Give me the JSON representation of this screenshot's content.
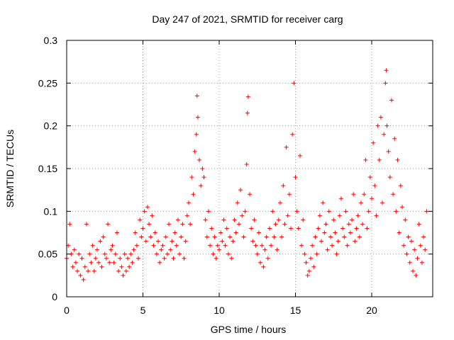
{
  "chart_data": {
    "type": "scatter",
    "title": "Day 247 of 2021, SRMTID for receiver carg",
    "xlabel": "GPS time / hours",
    "ylabel": "SRMTID / TECUs",
    "xlim": [
      0,
      24
    ],
    "ylim": [
      0,
      0.3
    ],
    "xticks": [
      0,
      5,
      10,
      15,
      20
    ],
    "yticks": [
      0,
      0.05,
      0.1,
      0.15,
      0.2,
      0.25,
      0.3
    ],
    "xtick_labels": [
      "0",
      "5",
      "10",
      "15",
      "20"
    ],
    "ytick_labels": [
      "0",
      "0.05",
      "0.1",
      "0.15",
      "0.2",
      "0.25",
      "0.3"
    ],
    "grid": true,
    "marker": "+",
    "color": "#ff0000",
    "series": [
      {
        "name": "SRMTID",
        "points": [
          [
            0.0,
            0.045
          ],
          [
            0.1,
            0.06
          ],
          [
            0.2,
            0.085
          ],
          [
            0.3,
            0.05
          ],
          [
            0.4,
            0.035
          ],
          [
            0.5,
            0.055
          ],
          [
            0.6,
            0.04
          ],
          [
            0.7,
            0.03
          ],
          [
            0.8,
            0.05
          ],
          [
            0.9,
            0.025
          ],
          [
            1.0,
            0.045
          ],
          [
            1.1,
            0.02
          ],
          [
            1.2,
            0.035
          ],
          [
            1.3,
            0.085
          ],
          [
            1.4,
            0.03
          ],
          [
            1.5,
            0.05
          ],
          [
            1.6,
            0.04
          ],
          [
            1.7,
            0.06
          ],
          [
            1.8,
            0.03
          ],
          [
            1.9,
            0.045
          ],
          [
            2.0,
            0.055
          ],
          [
            2.1,
            0.04
          ],
          [
            2.2,
            0.065
          ],
          [
            2.3,
            0.035
          ],
          [
            2.4,
            0.07
          ],
          [
            2.5,
            0.05
          ],
          [
            2.6,
            0.045
          ],
          [
            2.7,
            0.085
          ],
          [
            2.8,
            0.04
          ],
          [
            2.9,
            0.055
          ],
          [
            3.0,
            0.06
          ],
          [
            3.1,
            0.04
          ],
          [
            3.2,
            0.05
          ],
          [
            3.3,
            0.075
          ],
          [
            3.4,
            0.03
          ],
          [
            3.5,
            0.045
          ],
          [
            3.6,
            0.035
          ],
          [
            3.7,
            0.025
          ],
          [
            3.8,
            0.05
          ],
          [
            3.9,
            0.03
          ],
          [
            4.0,
            0.045
          ],
          [
            4.1,
            0.035
          ],
          [
            4.2,
            0.05
          ],
          [
            4.3,
            0.04
          ],
          [
            4.4,
            0.055
          ],
          [
            4.5,
            0.075
          ],
          [
            4.6,
            0.06
          ],
          [
            4.7,
            0.045
          ],
          [
            4.8,
            0.09
          ],
          [
            4.9,
            0.07
          ],
          [
            5.0,
            0.08
          ],
          [
            5.1,
            0.1
          ],
          [
            5.2,
            0.065
          ],
          [
            5.3,
            0.105
          ],
          [
            5.4,
            0.085
          ],
          [
            5.5,
            0.07
          ],
          [
            5.6,
            0.095
          ],
          [
            5.7,
            0.06
          ],
          [
            5.8,
            0.075
          ],
          [
            5.9,
            0.05
          ],
          [
            6.0,
            0.065
          ],
          [
            6.1,
            0.04
          ],
          [
            6.2,
            0.055
          ],
          [
            6.3,
            0.06
          ],
          [
            6.4,
            0.045
          ],
          [
            6.5,
            0.07
          ],
          [
            6.6,
            0.05
          ],
          [
            6.7,
            0.085
          ],
          [
            6.8,
            0.055
          ],
          [
            6.9,
            0.065
          ],
          [
            7.0,
            0.045
          ],
          [
            7.1,
            0.075
          ],
          [
            7.2,
            0.06
          ],
          [
            7.3,
            0.09
          ],
          [
            7.4,
            0.05
          ],
          [
            7.5,
            0.07
          ],
          [
            7.6,
            0.085
          ],
          [
            7.7,
            0.045
          ],
          [
            7.8,
            0.065
          ],
          [
            7.9,
            0.095
          ],
          [
            8.0,
            0.11
          ],
          [
            8.1,
            0.085
          ],
          [
            8.2,
            0.14
          ],
          [
            8.3,
            0.12
          ],
          [
            8.4,
            0.17
          ],
          [
            8.5,
            0.19
          ],
          [
            8.55,
            0.235
          ],
          [
            8.6,
            0.21
          ],
          [
            8.7,
            0.16
          ],
          [
            8.8,
            0.13
          ],
          [
            8.9,
            0.15
          ],
          [
            9.0,
            0.14
          ],
          [
            9.1,
            0.09
          ],
          [
            9.2,
            0.07
          ],
          [
            9.3,
            0.1
          ],
          [
            9.4,
            0.06
          ],
          [
            9.5,
            0.08
          ],
          [
            9.6,
            0.05
          ],
          [
            9.7,
            0.07
          ],
          [
            9.8,
            0.045
          ],
          [
            9.9,
            0.06
          ],
          [
            10.0,
            0.055
          ],
          [
            10.1,
            0.075
          ],
          [
            10.2,
            0.065
          ],
          [
            10.3,
            0.09
          ],
          [
            10.4,
            0.06
          ],
          [
            10.5,
            0.08
          ],
          [
            10.6,
            0.05
          ],
          [
            10.7,
            0.07
          ],
          [
            10.8,
            0.045
          ],
          [
            10.9,
            0.065
          ],
          [
            11.0,
            0.09
          ],
          [
            11.1,
            0.075
          ],
          [
            11.2,
            0.11
          ],
          [
            11.3,
            0.085
          ],
          [
            11.4,
            0.125
          ],
          [
            11.5,
            0.095
          ],
          [
            11.6,
            0.07
          ],
          [
            11.7,
            0.1
          ],
          [
            11.8,
            0.155
          ],
          [
            11.85,
            0.215
          ],
          [
            11.9,
            0.234
          ],
          [
            12.0,
            0.12
          ],
          [
            12.1,
            0.08
          ],
          [
            12.2,
            0.065
          ],
          [
            12.3,
            0.09
          ],
          [
            12.4,
            0.06
          ],
          [
            12.5,
            0.05
          ],
          [
            12.6,
            0.075
          ],
          [
            12.7,
            0.04
          ],
          [
            12.8,
            0.06
          ],
          [
            12.9,
            0.035
          ],
          [
            13.0,
            0.055
          ],
          [
            13.1,
            0.07
          ],
          [
            13.2,
            0.045
          ],
          [
            13.3,
            0.08
          ],
          [
            13.4,
            0.06
          ],
          [
            13.5,
            0.1
          ],
          [
            13.6,
            0.07
          ],
          [
            13.7,
            0.085
          ],
          [
            13.8,
            0.055
          ],
          [
            13.9,
            0.09
          ],
          [
            14.0,
            0.11
          ],
          [
            14.1,
            0.07
          ],
          [
            14.2,
            0.13
          ],
          [
            14.3,
            0.085
          ],
          [
            14.4,
            0.175
          ],
          [
            14.5,
            0.095
          ],
          [
            14.6,
            0.12
          ],
          [
            14.7,
            0.08
          ],
          [
            14.8,
            0.19
          ],
          [
            14.9,
            0.25
          ],
          [
            15.0,
            0.14
          ],
          [
            15.1,
            0.1
          ],
          [
            15.2,
            0.08
          ],
          [
            15.3,
            0.165
          ],
          [
            15.4,
            0.06
          ],
          [
            15.5,
            0.09
          ],
          [
            15.6,
            0.05
          ],
          [
            15.7,
            0.04
          ],
          [
            15.8,
            0.025
          ],
          [
            15.9,
            0.03
          ],
          [
            16.0,
            0.045
          ],
          [
            16.1,
            0.06
          ],
          [
            16.2,
            0.035
          ],
          [
            16.3,
            0.07
          ],
          [
            16.4,
            0.05
          ],
          [
            16.5,
            0.08
          ],
          [
            16.6,
            0.095
          ],
          [
            16.7,
            0.065
          ],
          [
            16.8,
            0.11
          ],
          [
            16.9,
            0.075
          ],
          [
            17.0,
            0.085
          ],
          [
            17.1,
            0.055
          ],
          [
            17.2,
            0.1
          ],
          [
            17.3,
            0.07
          ],
          [
            17.4,
            0.06
          ],
          [
            17.5,
            0.09
          ],
          [
            17.6,
            0.075
          ],
          [
            17.7,
            0.05
          ],
          [
            17.8,
            0.065
          ],
          [
            17.9,
            0.095
          ],
          [
            18.0,
            0.115
          ],
          [
            18.1,
            0.08
          ],
          [
            18.2,
            0.07
          ],
          [
            18.3,
            0.1
          ],
          [
            18.4,
            0.06
          ],
          [
            18.5,
            0.085
          ],
          [
            18.6,
            0.075
          ],
          [
            18.7,
            0.09
          ],
          [
            18.8,
            0.12
          ],
          [
            18.9,
            0.065
          ],
          [
            19.0,
            0.08
          ],
          [
            19.1,
            0.095
          ],
          [
            19.2,
            0.07
          ],
          [
            19.3,
            0.11
          ],
          [
            19.4,
            0.085
          ],
          [
            19.5,
            0.12
          ],
          [
            19.6,
            0.16
          ],
          [
            19.7,
            0.08
          ],
          [
            19.8,
            0.1
          ],
          [
            19.9,
            0.14
          ],
          [
            20.0,
            0.115
          ],
          [
            20.1,
            0.18
          ],
          [
            20.2,
            0.13
          ],
          [
            20.3,
            0.095
          ],
          [
            20.4,
            0.2
          ],
          [
            20.5,
            0.16
          ],
          [
            20.6,
            0.21
          ],
          [
            20.7,
            0.11
          ],
          [
            20.8,
            0.19
          ],
          [
            20.9,
            0.25
          ],
          [
            20.95,
            0.265
          ],
          [
            21.0,
            0.2
          ],
          [
            21.1,
            0.17
          ],
          [
            21.2,
            0.14
          ],
          [
            21.3,
            0.23
          ],
          [
            21.4,
            0.12
          ],
          [
            21.5,
            0.185
          ],
          [
            21.6,
            0.1
          ],
          [
            21.7,
            0.16
          ],
          [
            21.8,
            0.075
          ],
          [
            21.9,
            0.13
          ],
          [
            22.0,
            0.105
          ],
          [
            22.1,
            0.06
          ],
          [
            22.2,
            0.09
          ],
          [
            22.3,
            0.05
          ],
          [
            22.4,
            0.07
          ],
          [
            22.5,
            0.04
          ],
          [
            22.6,
            0.065
          ],
          [
            22.7,
            0.03
          ],
          [
            22.8,
            0.055
          ],
          [
            22.9,
            0.025
          ],
          [
            23.0,
            0.045
          ],
          [
            23.1,
            0.085
          ],
          [
            23.2,
            0.06
          ],
          [
            23.3,
            0.04
          ],
          [
            23.4,
            0.07
          ],
          [
            23.5,
            0.055
          ],
          [
            23.6,
            0.1
          ]
        ]
      }
    ]
  }
}
